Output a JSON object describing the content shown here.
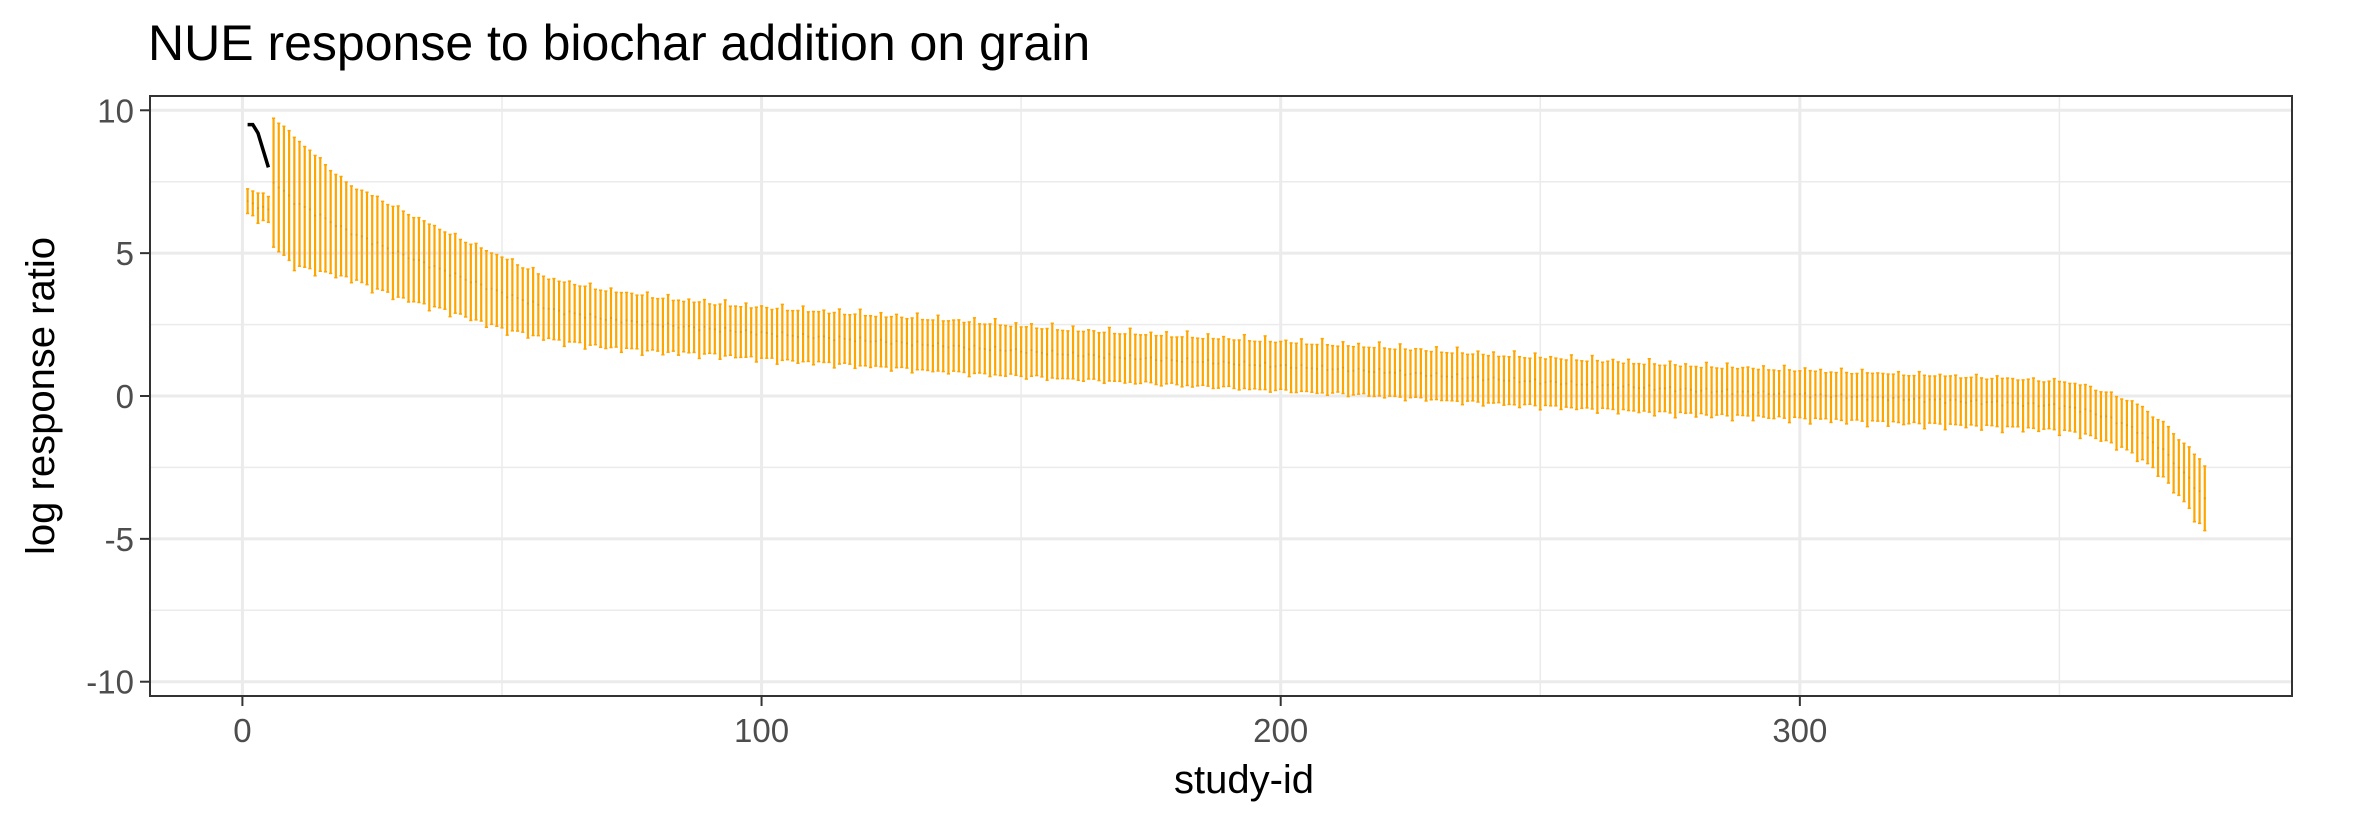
{
  "chart_data": {
    "type": "errorbar",
    "title": "NUE response to biochar addition on grain",
    "xlabel": "study-id",
    "ylabel": "log response ratio",
    "xlim": [
      -17.8,
      394.8
    ],
    "ylim": [
      -10.5,
      10.5
    ],
    "x_ticks": [
      0,
      100,
      200,
      300
    ],
    "x_tick_labels": [
      "0",
      "100",
      "200",
      "300"
    ],
    "y_ticks": [
      -10,
      -5,
      0,
      5,
      10
    ],
    "y_tick_labels": [
      "-10",
      "-5",
      "0",
      "5",
      "10"
    ],
    "x_minor_ticks": [
      50,
      150,
      250,
      350
    ],
    "y_minor_ticks": [
      -7.5,
      -2.5,
      2.5,
      7.5
    ],
    "grid": true,
    "n_studies": 378,
    "series": [
      {
        "kind": "errorbar",
        "color": "#FFA500",
        "center_profile": {
          "x": [
            1,
            5,
            6,
            10,
            20,
            30,
            40,
            50,
            60,
            70,
            80,
            90,
            100,
            120,
            140,
            160,
            180,
            200,
            220,
            240,
            260,
            280,
            300,
            320,
            340,
            350,
            355,
            360,
            365,
            370,
            375,
            378
          ],
          "y": [
            6.8,
            6.5,
            7.5,
            6.8,
            5.8,
            5.0,
            4.3,
            3.6,
            3.0,
            2.7,
            2.5,
            2.35,
            2.2,
            1.95,
            1.7,
            1.45,
            1.25,
            1.05,
            0.85,
            0.6,
            0.4,
            0.2,
            0.05,
            -0.1,
            -0.25,
            -0.35,
            -0.5,
            -0.8,
            -1.2,
            -1.9,
            -2.9,
            -3.6
          ]
        },
        "half_width_profile": {
          "x": [
            1,
            5,
            6,
            10,
            20,
            30,
            40,
            50,
            60,
            70,
            80,
            90,
            100,
            120,
            140,
            160,
            180,
            200,
            220,
            240,
            260,
            280,
            300,
            320,
            340,
            350,
            355,
            360,
            365,
            370,
            375,
            378
          ],
          "w": [
            0.4,
            0.4,
            2.2,
            2.2,
            1.6,
            1.5,
            1.3,
            1.2,
            1.0,
            0.95,
            0.9,
            0.85,
            0.85,
            0.85,
            0.85,
            0.8,
            0.8,
            0.8,
            0.8,
            0.8,
            0.8,
            0.8,
            0.8,
            0.8,
            0.8,
            0.8,
            0.8,
            0.8,
            0.85,
            0.9,
            1.0,
            1.1
          ]
        }
      },
      {
        "kind": "line",
        "color": "#000000",
        "x": [
          1,
          2,
          3,
          4,
          5
        ],
        "y": [
          9.5,
          9.5,
          9.2,
          8.6,
          8.0
        ]
      }
    ]
  }
}
